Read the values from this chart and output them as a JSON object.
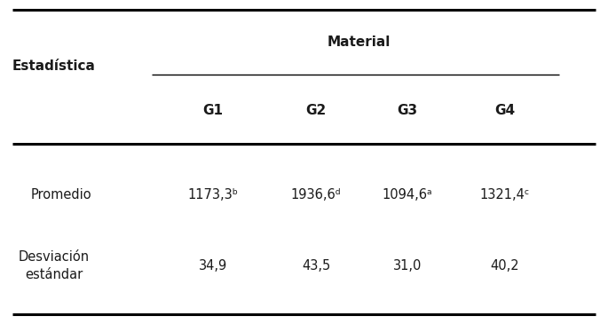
{
  "title": "Material",
  "col_header_label": "Estadística",
  "col_headers": [
    "G1",
    "G2",
    "G3",
    "G4"
  ],
  "row_labels": [
    "Promedio",
    "Desviación\nestándar"
  ],
  "row_data": [
    [
      "1173,3ᵇ",
      "1936,6ᵈ",
      "1094,6ᵃ",
      "1321,4ᶜ"
    ],
    [
      "34,9",
      "43,5",
      "31,0",
      "40,2"
    ]
  ],
  "bg_color": "#ffffff",
  "text_color": "#1a1a1a",
  "header_fontsize": 11,
  "data_fontsize": 10.5,
  "row_label_fontsize": 10.5,
  "fig_width": 6.85,
  "fig_height": 3.65,
  "dpi": 100
}
